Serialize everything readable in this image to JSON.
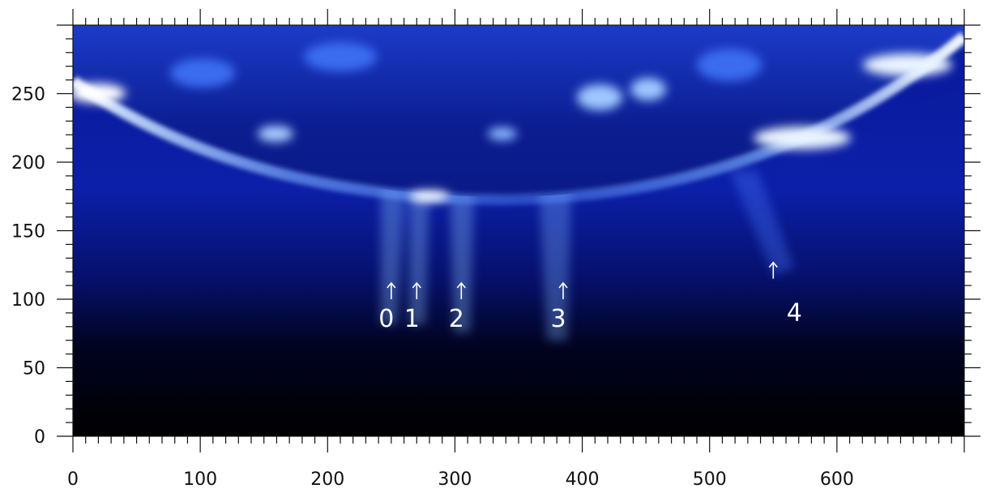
{
  "axes": {
    "x": {
      "range": [
        0,
        700
      ],
      "ticks": [
        "0",
        "100",
        "200",
        "300",
        "400",
        "500",
        "600"
      ]
    },
    "y": {
      "range": [
        0,
        300
      ],
      "ticks": [
        "0",
        "50",
        "100",
        "150",
        "200",
        "250"
      ]
    }
  },
  "image": {
    "subject": "solar-disk-limb-euv",
    "colors": {
      "dark": "#000000",
      "navy": "#050a4a",
      "mid_blue": "#1f4bd8",
      "bright": "#cfe6ff"
    }
  },
  "annotations": [
    {
      "label": "0",
      "x": 250,
      "y": 100
    },
    {
      "label": "1",
      "x": 270,
      "y": 100
    },
    {
      "label": "2",
      "x": 305,
      "y": 100
    },
    {
      "label": "3",
      "x": 385,
      "y": 100
    },
    {
      "label": "4",
      "x": 550,
      "y": 115
    }
  ]
}
